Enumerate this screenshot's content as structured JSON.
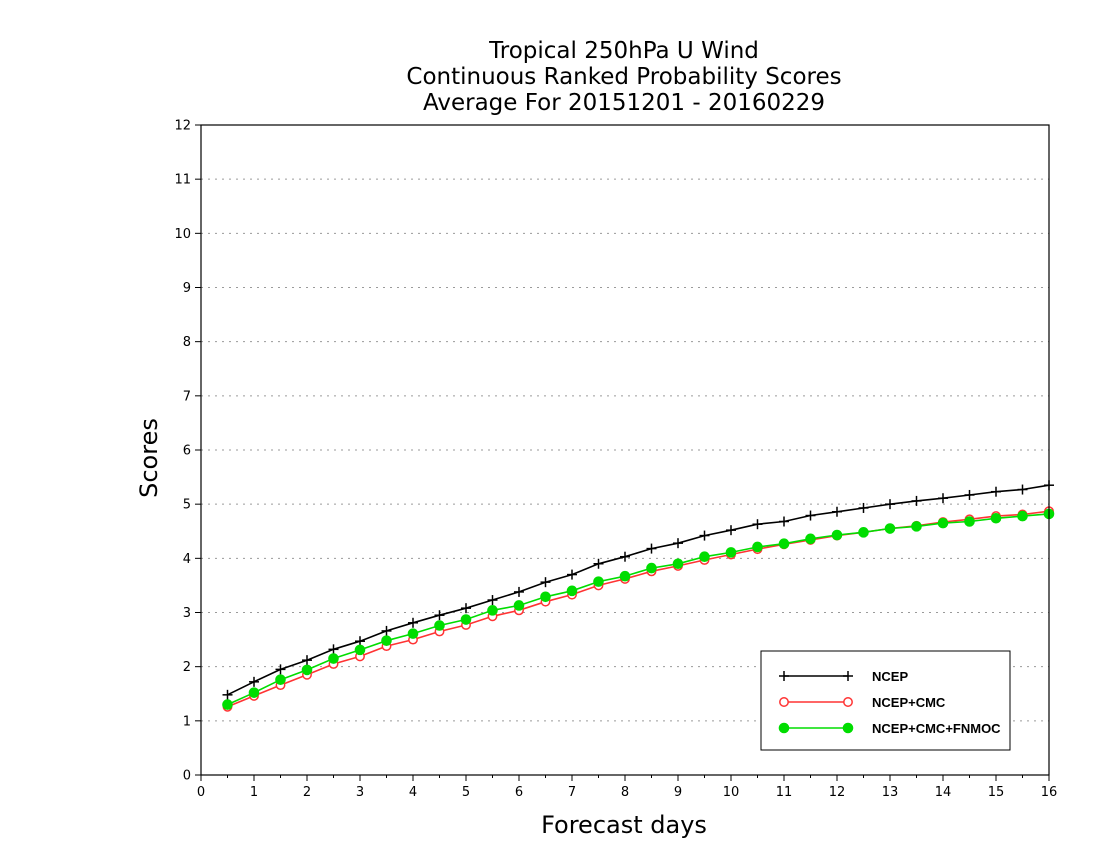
{
  "chart_data": {
    "type": "line",
    "title": [
      "Tropical 250hPa U Wind",
      "Continuous Ranked Probability Scores",
      "Average For 20151201 - 20160229"
    ],
    "xlabel": "Forecast days",
    "ylabel": "Scores",
    "xlim": [
      0,
      16
    ],
    "ylim": [
      0,
      12
    ],
    "xticks": [
      "0",
      "1",
      "2",
      "3",
      "4",
      "5",
      "6",
      "7",
      "8",
      "9",
      "10",
      "11",
      "12",
      "13",
      "14",
      "15",
      "16"
    ],
    "yticks": [
      "0",
      "1",
      "2",
      "3",
      "4",
      "5",
      "6",
      "7",
      "8",
      "9",
      "10",
      "11",
      "12"
    ],
    "grid": "horizontal-dotted",
    "legend_position": "bottom-right",
    "x": [
      0.5,
      1,
      1.5,
      2,
      2.5,
      3,
      3.5,
      4,
      4.5,
      5,
      5.5,
      6,
      6.5,
      7,
      7.5,
      8,
      8.5,
      9,
      9.5,
      10,
      10.5,
      11,
      11.5,
      12,
      12.5,
      13,
      13.5,
      14,
      14.5,
      15,
      15.5,
      16
    ],
    "series": [
      {
        "name": "NCEP",
        "color": "#000000",
        "marker": "plus",
        "values": [
          1.48,
          1.72,
          1.95,
          2.12,
          2.32,
          2.47,
          2.66,
          2.81,
          2.95,
          3.08,
          3.23,
          3.38,
          3.56,
          3.7,
          3.9,
          4.03,
          4.18,
          4.28,
          4.42,
          4.52,
          4.63,
          4.68,
          4.79,
          4.86,
          4.93,
          5.0,
          5.06,
          5.11,
          5.17,
          5.23,
          5.27,
          5.35
        ]
      },
      {
        "name": "NCEP+CMC",
        "color": "#ff3333",
        "marker": "open-circle",
        "values": [
          1.26,
          1.46,
          1.66,
          1.85,
          2.05,
          2.19,
          2.38,
          2.5,
          2.65,
          2.77,
          2.93,
          3.04,
          3.2,
          3.33,
          3.5,
          3.62,
          3.76,
          3.86,
          3.97,
          4.07,
          4.17,
          4.26,
          4.34,
          4.42,
          4.48,
          4.55,
          4.6,
          4.67,
          4.72,
          4.78,
          4.81,
          4.87
        ]
      },
      {
        "name": "NCEP+CMC+FNMOC",
        "color": "#00dd00",
        "marker": "filled-circle",
        "values": [
          1.3,
          1.52,
          1.76,
          1.94,
          2.15,
          2.31,
          2.48,
          2.61,
          2.76,
          2.87,
          3.04,
          3.13,
          3.29,
          3.4,
          3.57,
          3.67,
          3.82,
          3.9,
          4.03,
          4.11,
          4.21,
          4.27,
          4.36,
          4.43,
          4.48,
          4.55,
          4.59,
          4.65,
          4.68,
          4.74,
          4.78,
          4.82
        ]
      }
    ]
  }
}
